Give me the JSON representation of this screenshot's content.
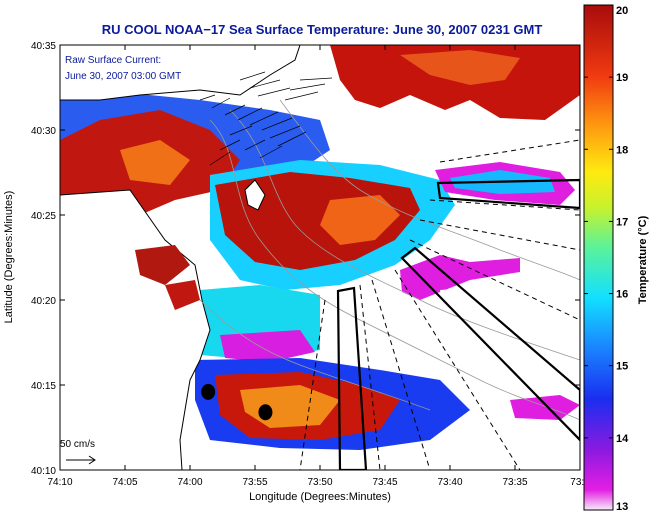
{
  "chart_data": {
    "type": "heatmap",
    "title": "RU COOL  NOAA−17  Sea Surface Temperature:  June 30, 2007 0231 GMT",
    "annotation": [
      "Raw Surface Current:",
      "June 30, 2007 03:00 GMT"
    ],
    "xlabel": "Longitude (Degrees:Minutes)",
    "ylabel": "Latitude (Degrees:Minutes)",
    "x_ticks": [
      "74:10",
      "74:05",
      "74:00",
      "73:55",
      "73:50",
      "73:45",
      "73:40",
      "73:35",
      "73:3"
    ],
    "y_ticks": [
      "40:35",
      "40:30",
      "40:25",
      "40:20",
      "40:15",
      "40:10"
    ],
    "xlim": [
      -74.1667,
      -73.5
    ],
    "ylim": [
      40.1667,
      40.5833
    ],
    "scale_label": "50 cm/s",
    "colorbar": {
      "label": "Temperature (°C)",
      "min": 13,
      "max": 20,
      "ticks": [
        "20",
        "19",
        "18",
        "17",
        "16",
        "15",
        "14",
        "13"
      ]
    },
    "markers": [
      {
        "lon": -73.9767,
        "lat": 40.2433
      },
      {
        "lon": -73.9033,
        "lat": 40.2233
      }
    ],
    "colors": {
      "land": "#ffffff",
      "warm": "#b8120a",
      "cool": "#1a3cf0",
      "cold": "#e012e0",
      "title_text": "#0b1a9a"
    }
  }
}
